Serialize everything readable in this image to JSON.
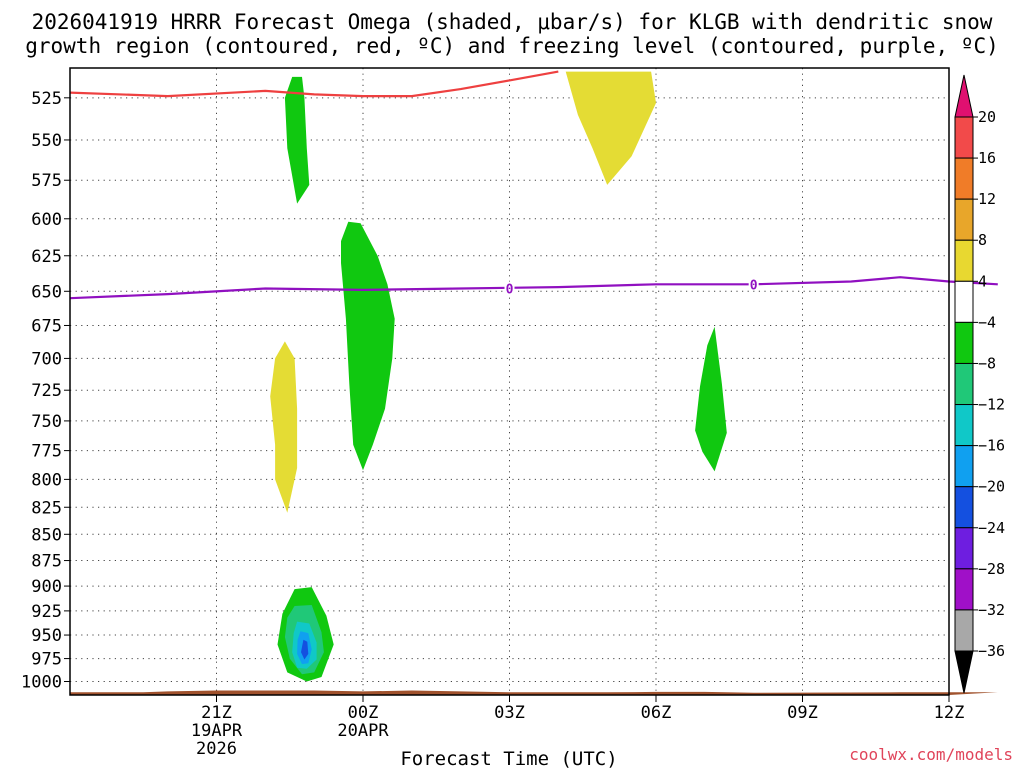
{
  "chart_data": {
    "type": "time-height section",
    "title_line1": "2026041919 HRRR Forecast Omega (shaded, μbar/s) for KLGB with dendritic snow",
    "title_line2": "growth region (contoured, red, ºC) and freezing level (contoured, purple, ºC)",
    "xlabel": "Forecast Time (UTC)",
    "credit": "coolwx.com/models",
    "x_range_hours": [
      -1,
      17
    ],
    "y_range_mb": [
      1015,
      508
    ],
    "y_ticks": [
      "525",
      "550",
      "575",
      "600",
      "625",
      "650",
      "675",
      "700",
      "725",
      "750",
      "775",
      "800",
      "825",
      "850",
      "875",
      "900",
      "925",
      "950",
      "975",
      "1000"
    ],
    "x_ticks": [
      {
        "h": 2,
        "line1": "21Z",
        "line2": "19APR",
        "line3": "2026"
      },
      {
        "h": 5,
        "line1": "00Z",
        "line2": "20APR",
        "line3": ""
      },
      {
        "h": 8,
        "line1": "03Z",
        "line2": "",
        "line3": ""
      },
      {
        "h": 11,
        "line1": "06Z",
        "line2": "",
        "line3": ""
      },
      {
        "h": 14,
        "line1": "09Z",
        "line2": "",
        "line3": ""
      },
      {
        "h": 17,
        "line1": "12Z",
        "line2": "",
        "line3": ""
      }
    ],
    "colorbar": {
      "labels": [
        "20",
        "16",
        "12",
        "8",
        "4",
        "−4",
        "−8",
        "−12",
        "−16",
        "−20",
        "−24",
        "−28",
        "−32",
        "−36"
      ],
      "colors": [
        "#f24a4a",
        "#f07c28",
        "#e8a62a",
        "#e8d830",
        "#ffffff",
        "#10c810",
        "#20c878",
        "#10c8c8",
        "#10a0f0",
        "#1450e0",
        "#6e1ee0",
        "#a010c8",
        "#a8a8a8"
      ],
      "top_arrow_color": "#e01070",
      "bottom_arrow_color": "#000000"
    },
    "freezing_level": {
      "color": "#9010c0",
      "label": "0",
      "points": [
        [
          -1,
          655
        ],
        [
          1,
          652
        ],
        [
          3,
          648
        ],
        [
          5,
          649
        ],
        [
          7,
          648
        ],
        [
          9,
          647
        ],
        [
          11,
          645
        ],
        [
          13,
          645
        ],
        [
          15,
          643
        ],
        [
          16,
          640
        ],
        [
          17,
          643
        ],
        [
          18,
          645
        ]
      ],
      "label_positions": [
        [
          8,
          648
        ],
        [
          13,
          645
        ]
      ]
    },
    "dgz_contour": {
      "color": "#ee4040",
      "points": [
        [
          -1,
          522
        ],
        [
          1,
          524
        ],
        [
          3,
          521
        ],
        [
          4,
          523
        ],
        [
          5,
          524
        ],
        [
          6,
          524
        ],
        [
          7,
          520
        ],
        [
          8,
          515
        ],
        [
          9,
          510
        ]
      ]
    },
    "terrain": {
      "color": "#a0522d",
      "points": [
        [
          -1,
          1012
        ],
        [
          0.5,
          1012
        ],
        [
          1,
          1011
        ],
        [
          2,
          1010
        ],
        [
          4,
          1010
        ],
        [
          5,
          1011
        ],
        [
          6,
          1010
        ],
        [
          7,
          1011
        ],
        [
          8,
          1012
        ],
        [
          10,
          1012
        ],
        [
          11,
          1011.5
        ],
        [
          12,
          1011.5
        ],
        [
          13,
          1012.5
        ],
        [
          16,
          1012
        ],
        [
          18,
          1012
        ]
      ]
    },
    "omega_regions": [
      {
        "label": "−4",
        "color": "#10c810",
        "points": [
          [
            3.55,
            513
          ],
          [
            3.75,
            513
          ],
          [
            3.8,
            525
          ],
          [
            3.85,
            555
          ],
          [
            3.9,
            578
          ],
          [
            3.65,
            590
          ],
          [
            3.45,
            555
          ],
          [
            3.4,
            525
          ]
        ]
      },
      {
        "label": "−4",
        "color": "#10c810",
        "points": [
          [
            4.55,
            615
          ],
          [
            4.7,
            602
          ],
          [
            4.95,
            603
          ],
          [
            5.3,
            625
          ],
          [
            5.5,
            645
          ],
          [
            5.65,
            670
          ],
          [
            5.6,
            700
          ],
          [
            5.45,
            740
          ],
          [
            5.2,
            770
          ],
          [
            5.0,
            792
          ],
          [
            4.8,
            770
          ],
          [
            4.72,
            720
          ],
          [
            4.65,
            670
          ],
          [
            4.55,
            630
          ]
        ]
      },
      {
        "label": "4",
        "color": "#e4dc34",
        "points": [
          [
            3.2,
            700
          ],
          [
            3.4,
            687
          ],
          [
            3.6,
            700
          ],
          [
            3.65,
            740
          ],
          [
            3.65,
            790
          ],
          [
            3.45,
            830
          ],
          [
            3.2,
            800
          ],
          [
            3.2,
            770
          ],
          [
            3.1,
            730
          ]
        ]
      },
      {
        "label": "4",
        "color": "#e4dc34",
        "points": [
          [
            9.15,
            510
          ],
          [
            10.9,
            510
          ],
          [
            11.0,
            528
          ],
          [
            10.5,
            560
          ],
          [
            10.0,
            578
          ],
          [
            9.7,
            555
          ],
          [
            9.4,
            535
          ]
        ]
      },
      {
        "label": "−4",
        "color": "#10c810",
        "points": [
          [
            11.9,
            722
          ],
          [
            12.05,
            690
          ],
          [
            12.2,
            676
          ],
          [
            12.35,
            720
          ],
          [
            12.45,
            760
          ],
          [
            12.2,
            793
          ],
          [
            11.95,
            776
          ],
          [
            11.8,
            758
          ],
          [
            11.85,
            740
          ]
        ]
      },
      {
        "label": "−4",
        "color": "#10c810",
        "points": [
          [
            3.6,
            903
          ],
          [
            3.95,
            901
          ],
          [
            4.25,
            930
          ],
          [
            4.4,
            960
          ],
          [
            4.15,
            995
          ],
          [
            3.85,
            1000
          ],
          [
            3.45,
            990
          ],
          [
            3.25,
            960
          ],
          [
            3.35,
            928
          ]
        ]
      },
      {
        "label": "−8",
        "color": "#20c878",
        "points": [
          [
            3.6,
            920
          ],
          [
            3.95,
            919
          ],
          [
            4.15,
            947
          ],
          [
            4.2,
            968
          ],
          [
            4.0,
            990
          ],
          [
            3.75,
            992
          ],
          [
            3.5,
            975
          ],
          [
            3.4,
            952
          ],
          [
            3.45,
            932
          ]
        ]
      },
      {
        "label": "−12",
        "color": "#10c8c8",
        "points": [
          [
            3.65,
            936
          ],
          [
            3.9,
            938
          ],
          [
            4.05,
            958
          ],
          [
            4.05,
            976
          ],
          [
            3.85,
            986
          ],
          [
            3.65,
            985
          ],
          [
            3.55,
            968
          ],
          [
            3.58,
            948
          ]
        ]
      },
      {
        "label": "−16",
        "color": "#10a0f0",
        "points": [
          [
            3.72,
            946
          ],
          [
            3.88,
            948
          ],
          [
            3.95,
            965
          ],
          [
            3.88,
            980
          ],
          [
            3.75,
            981
          ],
          [
            3.65,
            970
          ],
          [
            3.66,
            955
          ]
        ]
      },
      {
        "label": "−20",
        "color": "#1450e0",
        "points": [
          [
            3.78,
            955
          ],
          [
            3.86,
            957
          ],
          [
            3.88,
            970
          ],
          [
            3.8,
            976
          ],
          [
            3.73,
            968
          ]
        ]
      }
    ],
    "grid": true
  }
}
